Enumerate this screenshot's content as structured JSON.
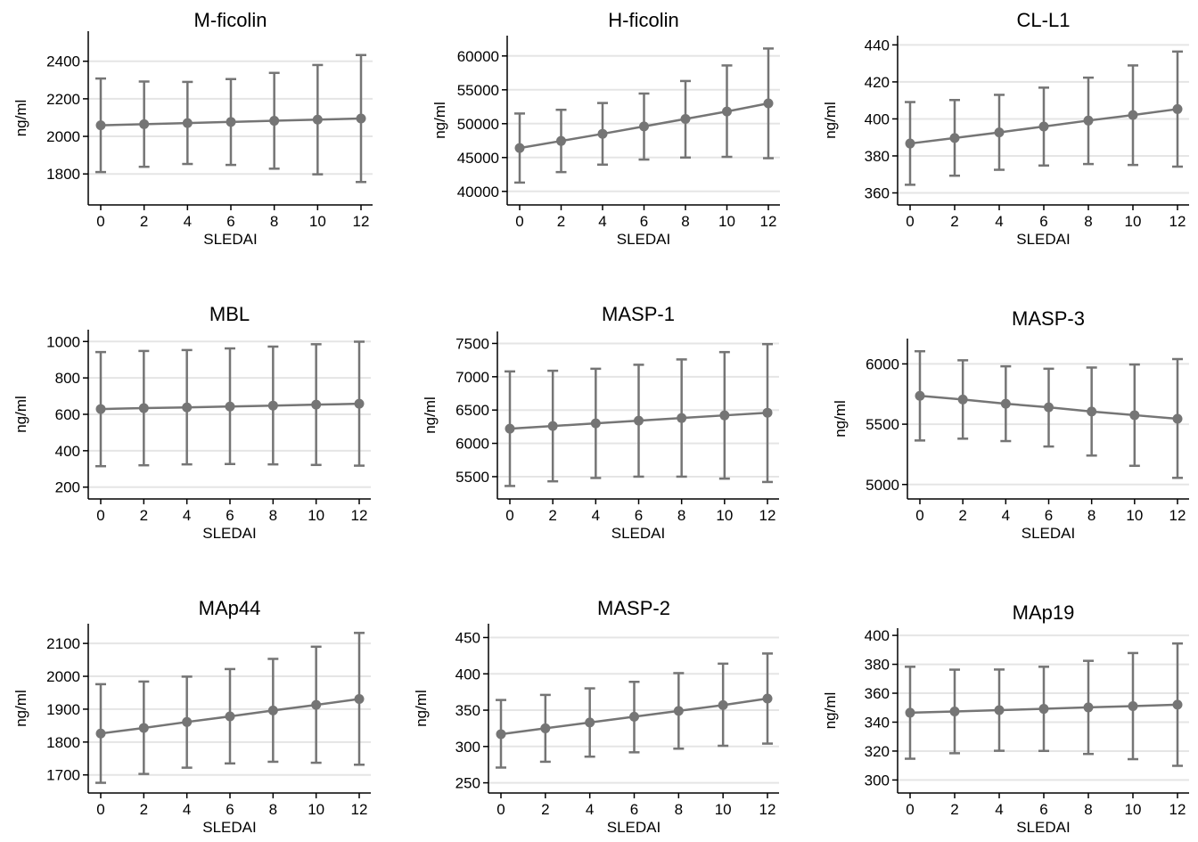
{
  "colors": {
    "mark": "#757575",
    "grid": "#e5e5e5",
    "axis": "#000000",
    "background": "#ffffff"
  },
  "chart_data": [
    {
      "type": "line",
      "title": "M-ficolin",
      "xlabel": "SLEDAI",
      "ylabel": "ng/ml",
      "x": [
        0,
        2,
        4,
        6,
        8,
        10,
        12
      ],
      "yticks": [
        1800,
        2000,
        2200,
        2400
      ],
      "ylim": [
        1635,
        2560
      ],
      "grid": true,
      "series": [
        {
          "values": [
            2059,
            2065,
            2071,
            2077,
            2083,
            2089,
            2095
          ],
          "lower": [
            1810,
            1838,
            1853,
            1848,
            1828,
            1798,
            1757
          ],
          "upper": [
            2308,
            2292,
            2290,
            2305,
            2338,
            2380,
            2433
          ]
        }
      ]
    },
    {
      "type": "line",
      "title": "H-ficolin",
      "xlabel": "SLEDAI",
      "ylabel": "ng/ml",
      "x": [
        0,
        2,
        4,
        6,
        8,
        10,
        12
      ],
      "yticks": [
        40000,
        45000,
        50000,
        55000,
        60000
      ],
      "ylim": [
        38000,
        63000
      ],
      "grid": true,
      "series": [
        {
          "values": [
            46400,
            47450,
            48500,
            49600,
            50700,
            51800,
            53000
          ],
          "lower": [
            41300,
            42850,
            43950,
            44700,
            45000,
            45100,
            44900
          ],
          "upper": [
            51500,
            52050,
            53050,
            54450,
            56300,
            58600,
            61100
          ]
        }
      ]
    },
    {
      "type": "line",
      "title": "CL-L1",
      "xlabel": "SLEDAI",
      "ylabel": "ng/ml",
      "x": [
        0,
        2,
        4,
        6,
        8,
        10,
        12
      ],
      "yticks": [
        360,
        380,
        400,
        420,
        440
      ],
      "ylim": [
        353.5,
        445
      ],
      "grid": true,
      "series": [
        {
          "values": [
            386.7,
            389.7,
            392.7,
            395.9,
            399.1,
            402.1,
            405.3
          ],
          "lower": [
            364.4,
            369.3,
            372.5,
            374.8,
            375.6,
            375.1,
            374.2
          ],
          "upper": [
            409.1,
            410.2,
            413.0,
            416.9,
            422.3,
            428.9,
            436.4
          ]
        }
      ]
    },
    {
      "type": "line",
      "title": "MBL",
      "xlabel": "SLEDAI",
      "ylabel": "ng/ml",
      "x": [
        0,
        2,
        4,
        6,
        8,
        10,
        12
      ],
      "yticks": [
        200,
        400,
        600,
        800,
        1000
      ],
      "ylim": [
        135,
        1065
      ],
      "grid": true,
      "series": [
        {
          "values": [
            629,
            634,
            638,
            643,
            648,
            653,
            658
          ],
          "lower": [
            315,
            320,
            325,
            327,
            325,
            322,
            318
          ],
          "upper": [
            942,
            948,
            953,
            962,
            972,
            985,
            999
          ]
        }
      ]
    },
    {
      "type": "line",
      "title": "MASP-1",
      "xlabel": "SLEDAI",
      "ylabel": "ng/ml",
      "x": [
        0,
        2,
        4,
        6,
        8,
        10,
        12
      ],
      "yticks": [
        5500,
        6000,
        6500,
        7000,
        7500
      ],
      "ylim": [
        5165,
        7680
      ],
      "grid": true,
      "series": [
        {
          "values": [
            6220,
            6260,
            6300,
            6340,
            6380,
            6420,
            6460
          ],
          "lower": [
            5360,
            5430,
            5480,
            5500,
            5500,
            5470,
            5420
          ],
          "upper": [
            7080,
            7090,
            7120,
            7180,
            7260,
            7370,
            7490
          ]
        }
      ]
    },
    {
      "type": "line",
      "title": "MASP-3",
      "xlabel": "SLEDAI",
      "ylabel": "ng/ml",
      "x": [
        0,
        2,
        4,
        6,
        8,
        10,
        12
      ],
      "yticks": [
        5000,
        5500,
        6000
      ],
      "ylim": [
        4880,
        6210
      ],
      "grid": true,
      "series": [
        {
          "values": [
            5735,
            5705,
            5670,
            5640,
            5605,
            5575,
            5545
          ],
          "lower": [
            5365,
            5380,
            5360,
            5315,
            5240,
            5155,
            5055
          ],
          "upper": [
            6105,
            6030,
            5980,
            5960,
            5970,
            5995,
            6040
          ]
        }
      ]
    },
    {
      "type": "line",
      "title": "MAp44",
      "xlabel": "SLEDAI",
      "ylabel": "ng/ml",
      "x": [
        0,
        2,
        4,
        6,
        8,
        10,
        12
      ],
      "yticks": [
        1700,
        1800,
        1900,
        2000,
        2100
      ],
      "ylim": [
        1645,
        2160
      ],
      "grid": true,
      "series": [
        {
          "values": [
            1826,
            1843,
            1861,
            1878,
            1896,
            1913,
            1931
          ],
          "lower": [
            1676,
            1703,
            1722,
            1735,
            1740,
            1737,
            1731
          ],
          "upper": [
            1976,
            1984,
            1999,
            2022,
            2053,
            2090,
            2132
          ]
        }
      ]
    },
    {
      "type": "line",
      "title": "MASP-2",
      "xlabel": "SLEDAI",
      "ylabel": "ng/ml",
      "x": [
        0,
        2,
        4,
        6,
        8,
        10,
        12
      ],
      "yticks": [
        250,
        300,
        350,
        400,
        450
      ],
      "ylim": [
        236,
        469
      ],
      "grid": true,
      "series": [
        {
          "values": [
            317,
            325,
            333,
            341,
            349,
            357,
            366
          ],
          "lower": [
            271,
            279,
            286,
            292,
            297,
            301,
            304
          ],
          "upper": [
            364,
            371,
            380,
            389,
            401,
            414,
            428
          ]
        }
      ]
    },
    {
      "type": "line",
      "title": "MAp19",
      "xlabel": "SLEDAI",
      "ylabel": "ng/ml",
      "x": [
        0,
        2,
        4,
        6,
        8,
        10,
        12
      ],
      "yticks": [
        300,
        320,
        340,
        360,
        380,
        400
      ],
      "ylim": [
        291,
        405
      ],
      "grid": true,
      "series": [
        {
          "values": [
            346.5,
            347.4,
            348.3,
            349.2,
            350.2,
            351.1,
            352.1
          ],
          "lower": [
            314.7,
            318.5,
            320.2,
            320.1,
            318.0,
            314.4,
            309.8
          ],
          "upper": [
            378.3,
            376.3,
            376.4,
            378.3,
            382.4,
            387.8,
            394.4
          ]
        }
      ]
    }
  ]
}
